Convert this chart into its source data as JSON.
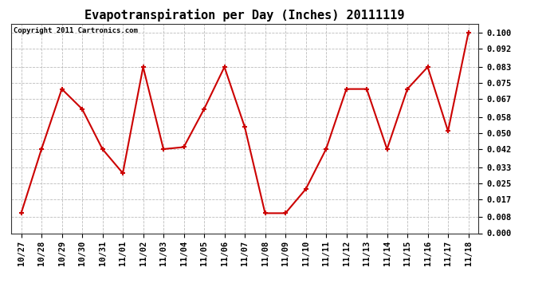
{
  "title": "Evapotranspiration per Day (Inches) 20111119",
  "copyright_text": "Copyright 2011 Cartronics.com",
  "x_labels": [
    "10/27",
    "10/28",
    "10/29",
    "10/30",
    "10/31",
    "11/01",
    "11/02",
    "11/03",
    "11/04",
    "11/05",
    "11/06",
    "11/07",
    "11/08",
    "11/09",
    "11/10",
    "11/11",
    "11/12",
    "11/13",
    "11/14",
    "11/15",
    "11/16",
    "11/17",
    "11/18"
  ],
  "y_values": [
    0.01,
    0.042,
    0.072,
    0.062,
    0.042,
    0.03,
    0.083,
    0.042,
    0.043,
    0.062,
    0.083,
    0.053,
    0.01,
    0.01,
    0.022,
    0.042,
    0.072,
    0.072,
    0.042,
    0.072,
    0.083,
    0.051,
    0.1
  ],
  "line_color": "#cc0000",
  "marker_color": "#cc0000",
  "background_color": "#ffffff",
  "plot_bg_color": "#ffffff",
  "grid_color": "#bbbbbb",
  "ylim": [
    0.0,
    0.1045
  ],
  "yticks": [
    0.0,
    0.008,
    0.017,
    0.025,
    0.033,
    0.042,
    0.05,
    0.058,
    0.067,
    0.075,
    0.083,
    0.092,
    0.1
  ],
  "title_fontsize": 11,
  "copyright_fontsize": 6.5,
  "tick_fontsize": 7.5
}
